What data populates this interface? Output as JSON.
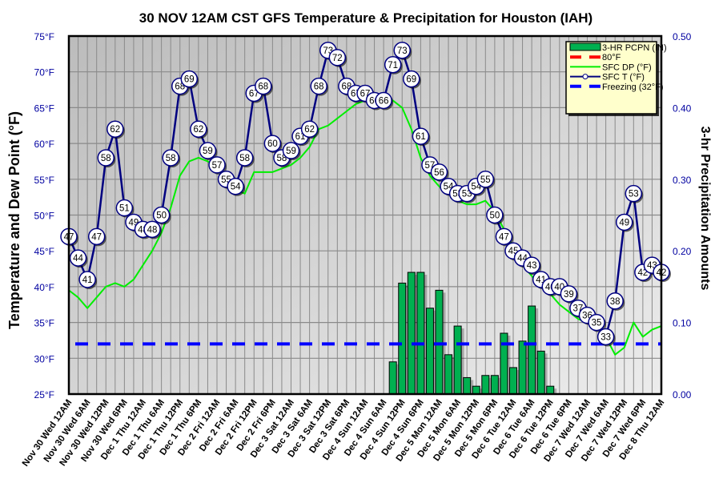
{
  "chart_data": {
    "type": "line",
    "title": "30 NOV 12AM CST GFS Temperature & Precipitation for Houston (IAH)",
    "ylabel": "Temperature and Dew Point (°F)",
    "y2label": "3-hr Precipitation Amounts",
    "ylim": [
      25,
      75
    ],
    "y2lim": [
      0,
      0.5
    ],
    "yticks": [
      "25°F",
      "30°F",
      "35°F",
      "40°F",
      "45°F",
      "50°F",
      "55°F",
      "60°F",
      "65°F",
      "70°F",
      "75°F"
    ],
    "y2ticks": [
      "0.00",
      "0.10",
      "0.20",
      "0.30",
      "0.40",
      "0.50"
    ],
    "grid": true,
    "legend_position": "top-right",
    "xticks": [
      "Nov 30 Wed 12AM",
      "Nov 30 Wed 6AM",
      "Nov 30 Wed 12PM",
      "Nov 30 Wed 6PM",
      "Dec 1 Thu  12AM",
      "Dec 1 Thu  6AM",
      "Dec 1 Thu  12PM",
      "Dec 1 Thu  6PM",
      "Dec 2 Fri 12AM",
      "Dec 2 Fri 6AM",
      "Dec 2 Fri 12PM",
      "Dec 2 Fri 6PM",
      "Dec 3 Sat 12AM",
      "Dec 3 Sat 6AM",
      "Dec 3 Sat 12PM",
      "Dec 3 Sat 6PM",
      "Dec 4 Sun 12AM",
      "Dec 4 Sun 6AM",
      "Dec 4 Sun 12PM",
      "Dec 4 Sun 6PM",
      "Dec 5 Mon 12AM",
      "Dec 5 Mon 6AM",
      "Dec 5 Mon 12PM",
      "Dec 5 Mon 6PM",
      "Dec 6 Tue 12AM",
      "Dec 6 Tue 6AM",
      "Dec 6 Tue 12PM",
      "Dec 6 Tue 6PM",
      "Dec 7 Wed 12AM",
      "Dec 7 Wed 6AM",
      "Dec 7 Wed 12PM",
      "Dec 7 Wed 6PM",
      "Dec 8 Thu  12AM"
    ],
    "x_step_hours": 3,
    "series": [
      {
        "name": "SFC T (°F)",
        "color": "#000080",
        "values": [
          47,
          44,
          41,
          47,
          58,
          62,
          51,
          49,
          48,
          48,
          50,
          58,
          68,
          69,
          62,
          59,
          57,
          55,
          54,
          58,
          67,
          68,
          60,
          58,
          59,
          61,
          62,
          68,
          73,
          72,
          68,
          67,
          67,
          66,
          66,
          71,
          73,
          69,
          61,
          57,
          56,
          54,
          53,
          53,
          54,
          55,
          50,
          47,
          45,
          44,
          43,
          41,
          40,
          40,
          39,
          37,
          36,
          35,
          33,
          38,
          49,
          53,
          42,
          43,
          42
        ]
      },
      {
        "name": "SFC DP (°F)",
        "color": "#00ee00",
        "values": [
          39.5,
          38.5,
          37,
          38.5,
          40,
          40.5,
          40,
          41,
          43,
          45,
          47.5,
          51,
          55.5,
          57.5,
          58,
          57.5,
          56.5,
          55,
          53.5,
          53,
          56,
          56,
          56,
          56.5,
          57,
          58,
          59.5,
          62,
          62.5,
          63.5,
          64.5,
          65.5,
          66,
          66,
          66,
          66,
          65,
          62,
          58,
          55.5,
          54,
          53,
          52,
          51.5,
          51.5,
          52,
          50.5,
          48,
          45.5,
          43,
          41.5,
          40,
          39,
          37.5,
          36.5,
          35.5,
          35,
          34.5,
          33,
          30.5,
          31.5,
          35,
          33,
          34,
          34.5
        ]
      },
      {
        "name": "3-HR PCPN  (IN)",
        "color": "#00b050",
        "start_index": 35,
        "values": [
          0.045,
          0.155,
          0.17,
          0.17,
          0.12,
          0.145,
          0.055,
          0.095,
          0.023,
          0.011,
          0.026,
          0.026,
          0.085,
          0.037,
          0.074,
          0.123,
          0.06,
          0.011
        ]
      },
      {
        "name": "80°F",
        "color": "#ff0000",
        "value": 80
      },
      {
        "name": "Freezing (32°F)",
        "color": "#0000ff",
        "value": 32
      }
    ]
  }
}
